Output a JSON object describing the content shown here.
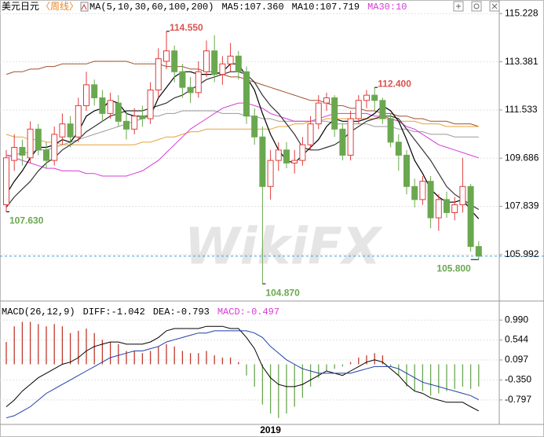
{
  "chart_data": [
    {
      "type": "candlestick",
      "title": "美元日元",
      "period": "〈周线〉",
      "legend": [
        {
          "text": "MA(5,10,30,60,100,200)",
          "color": "#000000"
        },
        {
          "text": "MA5:107.360",
          "color": "#000000"
        },
        {
          "text": "MA10:107.719",
          "color": "#000000"
        },
        {
          "text": "MA30:10",
          "color": "#d63cd6"
        }
      ],
      "categories": [
        null,
        null,
        null,
        null,
        null,
        null,
        null,
        null,
        null,
        null,
        null,
        null,
        null,
        null,
        null,
        null,
        null,
        null,
        null,
        null,
        null,
        null,
        null,
        null,
        null,
        null,
        null,
        null,
        null,
        null,
        null,
        null,
        null,
        "2019",
        null,
        null,
        null,
        null,
        null,
        null,
        null,
        null,
        null,
        null,
        null,
        null,
        null,
        null,
        null,
        null,
        null,
        null,
        null,
        null,
        null,
        null,
        null,
        null,
        null,
        null
      ],
      "open": [
        107.9,
        109.6,
        110.1,
        109.7,
        110.8,
        110.0,
        109.6,
        110.5,
        111.0,
        110.5,
        111.7,
        112.5,
        112.0,
        111.4,
        111.8,
        111.1,
        110.8,
        111.3,
        111.2,
        112.3,
        113.4,
        113.8,
        113.0,
        112.4,
        112.2,
        113.0,
        113.8,
        112.9,
        113.3,
        113.6,
        113.0,
        111.3,
        110.5,
        108.6,
        109.6,
        110.0,
        109.5,
        109.6,
        110.2,
        111.0,
        111.8,
        112.0,
        110.8,
        109.8,
        111.2,
        111.9,
        112.1,
        111.9,
        111.2,
        110.3,
        109.8,
        108.6,
        108.1,
        108.8,
        107.4,
        108.1,
        107.6,
        107.9,
        108.6,
        106.3
      ],
      "high": [
        110.0,
        110.6,
        110.4,
        111.1,
        111.0,
        110.3,
        110.9,
        111.4,
        111.3,
        112.0,
        113.0,
        112.7,
        112.3,
        112.2,
        112.1,
        111.5,
        111.6,
        111.7,
        112.6,
        113.9,
        114.55,
        114.0,
        113.3,
        112.8,
        113.4,
        114.2,
        114.4,
        113.6,
        114.1,
        113.8,
        113.2,
        111.6,
        110.9,
        110.0,
        110.3,
        110.3,
        110.0,
        110.5,
        111.3,
        112.1,
        112.2,
        112.1,
        111.0,
        111.5,
        112.1,
        112.3,
        112.4,
        112.0,
        111.4,
        110.6,
        110.0,
        108.9,
        109.0,
        109.0,
        108.3,
        108.4,
        108.2,
        109.7,
        108.7,
        106.5
      ],
      "low": [
        107.63,
        109.2,
        109.4,
        109.5,
        109.8,
        109.3,
        109.4,
        110.2,
        110.1,
        110.3,
        111.5,
        111.7,
        111.1,
        111.2,
        110.9,
        110.4,
        110.6,
        110.9,
        111.0,
        112.0,
        113.1,
        112.6,
        112.0,
        111.8,
        112.0,
        112.8,
        112.6,
        112.5,
        113.0,
        112.7,
        111.0,
        110.2,
        104.87,
        108.1,
        109.2,
        109.3,
        109.1,
        109.4,
        110.0,
        110.8,
        111.5,
        110.5,
        109.6,
        109.6,
        111.0,
        111.6,
        111.5,
        111.0,
        110.1,
        109.2,
        108.3,
        107.8,
        107.9,
        107.0,
        106.9,
        107.4,
        107.3,
        107.6,
        106.1,
        105.8
      ],
      "close": [
        109.7,
        110.1,
        109.8,
        110.8,
        110.0,
        109.6,
        110.6,
        111.0,
        110.5,
        111.7,
        112.5,
        112.0,
        111.4,
        111.9,
        111.1,
        110.8,
        111.3,
        111.2,
        112.3,
        113.5,
        113.8,
        113.0,
        112.4,
        112.2,
        113.0,
        113.8,
        112.9,
        113.3,
        113.6,
        113.0,
        111.3,
        110.5,
        108.6,
        109.6,
        110.0,
        109.5,
        109.6,
        110.2,
        111.0,
        111.8,
        112.0,
        110.8,
        109.8,
        111.2,
        111.9,
        112.1,
        111.9,
        111.2,
        110.3,
        109.8,
        108.6,
        108.1,
        108.8,
        107.4,
        108.1,
        107.6,
        107.9,
        108.6,
        106.3,
        105.93
      ],
      "up_color": "#e03c3c",
      "down_color": "#6aa84f",
      "series": [
        {
          "name": "MA5",
          "color": "#000000",
          "values": [
            108.3,
            108.8,
            109.2,
            109.7,
            110.1,
            110.1,
            110.2,
            110.4,
            110.3,
            110.7,
            111.3,
            111.5,
            111.6,
            111.9,
            111.8,
            111.4,
            111.3,
            111.3,
            111.3,
            112.0,
            112.4,
            112.8,
            113.0,
            113.0,
            112.9,
            112.9,
            112.9,
            113.0,
            113.3,
            113.3,
            112.8,
            112.3,
            111.4,
            110.6,
            110.0,
            109.6,
            109.5,
            109.8,
            110.1,
            110.4,
            110.9,
            111.2,
            111.1,
            111.1,
            111.1,
            111.2,
            111.4,
            111.7,
            111.5,
            111.1,
            110.4,
            109.6,
            109.1,
            108.5,
            108.2,
            108.0,
            108.0,
            108.1,
            107.7,
            107.36
          ]
        },
        {
          "name": "MA10",
          "color": "#333333",
          "values": [
            107.8,
            108.2,
            108.5,
            108.8,
            109.2,
            109.5,
            109.7,
            110.0,
            110.2,
            110.4,
            110.7,
            110.9,
            111.1,
            111.3,
            111.4,
            111.5,
            111.5,
            111.5,
            111.6,
            111.7,
            111.8,
            112.0,
            112.1,
            112.3,
            112.5,
            112.7,
            112.8,
            112.9,
            113.0,
            113.0,
            112.9,
            112.6,
            112.1,
            111.7,
            111.4,
            111.0,
            110.6,
            110.1,
            110.0,
            110.0,
            110.1,
            110.2,
            110.4,
            110.7,
            110.9,
            111.1,
            111.2,
            111.3,
            111.3,
            111.2,
            110.8,
            110.4,
            110.0,
            109.6,
            109.1,
            108.6,
            108.3,
            108.1,
            107.9,
            107.719
          ]
        },
        {
          "name": "MA30",
          "color": "#d63cd6",
          "values": [
            109.8,
            109.7,
            109.6,
            109.5,
            109.4,
            109.3,
            109.3,
            109.2,
            109.2,
            109.2,
            109.1,
            109.1,
            109.0,
            109.0,
            109.0,
            109.0,
            109.1,
            109.2,
            109.4,
            109.6,
            109.9,
            110.2,
            110.5,
            110.8,
            111.0,
            111.2,
            111.4,
            111.6,
            111.7,
            111.8,
            111.8,
            111.7,
            111.6,
            111.4,
            111.3,
            111.2,
            111.1,
            111.1,
            111.1,
            111.2,
            111.3,
            111.4,
            111.4,
            111.4,
            111.4,
            111.4,
            111.3,
            111.3,
            111.2,
            111.1,
            110.9,
            110.8,
            110.6,
            110.4,
            110.2,
            110.1,
            110.0,
            109.9,
            109.8,
            109.7
          ]
        },
        {
          "name": "MA60",
          "color": "#e8a33a",
          "values": [
            110.6,
            110.5,
            110.5,
            110.4,
            110.4,
            110.3,
            110.3,
            110.2,
            110.2,
            110.2,
            110.2,
            110.2,
            110.2,
            110.2,
            110.2,
            110.2,
            110.2,
            110.3,
            110.3,
            110.4,
            110.5,
            110.5,
            110.6,
            110.7,
            110.7,
            110.8,
            110.8,
            110.8,
            110.8,
            110.8,
            110.8,
            110.8,
            110.8,
            110.8,
            110.9,
            110.9,
            111.0,
            111.0,
            111.1,
            111.1,
            111.2,
            111.2,
            111.2,
            111.2,
            111.2,
            111.2,
            111.2,
            111.2,
            111.2,
            111.1,
            111.1,
            111.1,
            111.0,
            111.0,
            111.0,
            110.9,
            110.9,
            110.9,
            110.9,
            110.9
          ]
        },
        {
          "name": "MA100",
          "color": "#9a9a9a",
          "values": [
            109.8,
            109.8,
            109.9,
            109.9,
            110.0,
            110.0,
            110.1,
            110.2,
            110.3,
            110.4,
            110.5,
            110.6,
            110.7,
            110.8,
            110.9,
            111.0,
            111.1,
            111.2,
            111.3,
            111.3,
            111.4,
            111.4,
            111.5,
            111.5,
            111.5,
            111.5,
            111.5,
            111.4,
            111.4,
            111.4,
            111.3,
            111.3,
            111.2,
            111.2,
            111.1,
            111.1,
            111.1,
            111.1,
            111.1,
            111.1,
            111.1,
            111.0,
            111.0,
            111.0,
            111.0,
            111.0,
            110.9,
            110.9,
            110.9,
            110.8,
            110.8,
            110.7,
            110.7,
            110.6,
            110.6,
            110.6,
            110.5,
            110.5,
            110.5,
            110.5
          ]
        },
        {
          "name": "MA200",
          "color": "#a0522d",
          "values": [
            112.9,
            113.0,
            113.0,
            113.1,
            113.1,
            113.2,
            113.2,
            113.3,
            113.3,
            113.3,
            113.3,
            113.4,
            113.4,
            113.4,
            113.4,
            113.4,
            113.3,
            113.3,
            113.3,
            113.3,
            113.2,
            113.2,
            113.2,
            113.1,
            113.1,
            113.0,
            113.0,
            112.9,
            112.8,
            112.8,
            112.7,
            112.6,
            112.5,
            112.4,
            112.3,
            112.2,
            112.1,
            112.0,
            111.9,
            111.9,
            111.8,
            111.7,
            111.7,
            111.6,
            111.6,
            111.5,
            111.5,
            111.4,
            111.4,
            111.3,
            111.3,
            111.2,
            111.2,
            111.1,
            111.1,
            111.1,
            111.0,
            111.0,
            111.0,
            110.9
          ]
        }
      ],
      "annotations": [
        {
          "value": 114.55,
          "label": "114.550",
          "color": "#d9534f"
        },
        {
          "value": 112.4,
          "label": "112.400",
          "color": "#d9534f"
        },
        {
          "value": 107.63,
          "label": "107.630",
          "color": "#6aa84f"
        },
        {
          "value": 104.87,
          "label": "104.870",
          "color": "#6aa84f"
        },
        {
          "value": 105.8,
          "label": "105.800",
          "color": "#6aa84f"
        }
      ],
      "ylim": [
        104.3,
        115.75
      ],
      "yticks": [
        115.228,
        113.381,
        111.533,
        109.686,
        107.839,
        105.992
      ],
      "grid": true,
      "last_price_color": "#3aa0d8",
      "watermark": "WikiFX"
    },
    {
      "type": "macd",
      "legend": [
        {
          "text": "MACD(26,12,9)",
          "color": "#000000"
        },
        {
          "text": "DIFF:-1.042",
          "color": "#000000"
        },
        {
          "text": "DEA:-0.793",
          "color": "#000000"
        },
        {
          "text": "MACD:-0.497",
          "color": "#d63cd6"
        }
      ],
      "histogram": {
        "up_color": "#c0392b",
        "down_color": "#6aa84f",
        "values": [
          0.5,
          0.85,
          0.95,
          0.95,
          0.9,
          0.85,
          0.9,
          0.85,
          0.7,
          0.75,
          0.8,
          0.7,
          0.55,
          0.5,
          0.45,
          0.3,
          0.3,
          0.25,
          0.3,
          0.4,
          0.45,
          0.4,
          0.3,
          0.25,
          0.25,
          0.3,
          0.2,
          0.15,
          0.15,
          0.05,
          -0.25,
          -0.5,
          -0.9,
          -1.1,
          -1.2,
          -1.1,
          -0.95,
          -0.75,
          -0.5,
          -0.3,
          -0.15,
          -0.1,
          -0.05,
          0.05,
          0.15,
          0.2,
          0.25,
          0.2,
          -0.05,
          -0.25,
          -0.5,
          -0.6,
          -0.6,
          -0.7,
          -0.65,
          -0.6,
          -0.55,
          -0.5,
          -0.55,
          -0.497
        ]
      },
      "series": [
        {
          "name": "DIFF",
          "color": "#000000",
          "values": [
            -0.95,
            -0.8,
            -0.6,
            -0.45,
            -0.3,
            -0.2,
            -0.1,
            0.0,
            0.05,
            0.15,
            0.3,
            0.4,
            0.45,
            0.5,
            0.5,
            0.45,
            0.45,
            0.45,
            0.5,
            0.6,
            0.75,
            0.8,
            0.8,
            0.8,
            0.8,
            0.85,
            0.85,
            0.85,
            0.8,
            0.8,
            0.6,
            0.35,
            -0.05,
            -0.3,
            -0.45,
            -0.5,
            -0.5,
            -0.45,
            -0.35,
            -0.25,
            -0.15,
            -0.2,
            -0.25,
            -0.15,
            -0.05,
            0.05,
            0.1,
            0.05,
            -0.1,
            -0.25,
            -0.45,
            -0.6,
            -0.65,
            -0.75,
            -0.8,
            -0.85,
            -0.85,
            -0.85,
            -0.95,
            -1.042
          ]
        },
        {
          "name": "DEA",
          "color": "#1f3fa8",
          "values": [
            -1.2,
            -1.15,
            -1.05,
            -0.95,
            -0.8,
            -0.65,
            -0.55,
            -0.45,
            -0.35,
            -0.25,
            -0.15,
            -0.05,
            0.05,
            0.15,
            0.2,
            0.25,
            0.3,
            0.3,
            0.35,
            0.4,
            0.5,
            0.55,
            0.6,
            0.65,
            0.7,
            0.7,
            0.75,
            0.75,
            0.75,
            0.75,
            0.75,
            0.7,
            0.6,
            0.4,
            0.25,
            0.1,
            0.0,
            -0.1,
            -0.15,
            -0.2,
            -0.2,
            -0.2,
            -0.2,
            -0.2,
            -0.15,
            -0.1,
            -0.05,
            -0.05,
            -0.05,
            -0.1,
            -0.2,
            -0.3,
            -0.4,
            -0.45,
            -0.5,
            -0.55,
            -0.6,
            -0.65,
            -0.7,
            -0.793
          ]
        }
      ],
      "ylim": [
        -1.31,
        1.24
      ],
      "yticks": [
        {
          "value": 0.99,
          "label": "0.990"
        },
        0.544,
        0.097,
        {
          "value": -0.35,
          "label": "-0.350"
        },
        -0.797
      ],
      "grid": true
    }
  ]
}
